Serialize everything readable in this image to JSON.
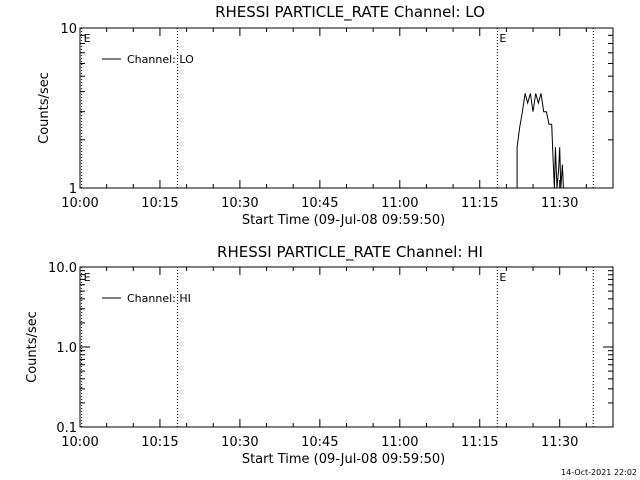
{
  "footer": {
    "timestamp": "14-Oct-2021 22:02"
  },
  "chart_data": [
    {
      "type": "line",
      "title": "RHESSI PARTICLE_RATE Channel: LO",
      "xlabel": "Start Time (09-Jul-08 09:59:50)",
      "ylabel": "Counts/sec",
      "y_scale": "log",
      "xlim_minutes": [
        0,
        100
      ],
      "ylim": [
        1,
        10
      ],
      "x_ticks": [
        {
          "minutes": 0,
          "label": "10:00"
        },
        {
          "minutes": 15,
          "label": "10:15"
        },
        {
          "minutes": 30,
          "label": "10:30"
        },
        {
          "minutes": 45,
          "label": "10:45"
        },
        {
          "minutes": 60,
          "label": "11:00"
        },
        {
          "minutes": 75,
          "label": "11:15"
        },
        {
          "minutes": 90,
          "label": "11:30"
        }
      ],
      "y_ticks": [
        {
          "value": 1,
          "label": "1"
        },
        {
          "value": 10,
          "label": "10"
        }
      ],
      "legend": {
        "entry": "Channel: LO",
        "position": "top-left"
      },
      "event_lines": [
        {
          "minutes": 0.3,
          "label": "E"
        },
        {
          "minutes": 18.3,
          "label": ""
        },
        {
          "minutes": 78.3,
          "label": "E"
        },
        {
          "minutes": 96.3,
          "label": ""
        }
      ],
      "series": [
        {
          "x_minutes": [
            82.0,
            82.0,
            82.5,
            83.0,
            83.5,
            84.0,
            84.5,
            85.0,
            85.5,
            86.0,
            86.5,
            87.0,
            87.5,
            88.0,
            88.5,
            88.8,
            89.0,
            89.2,
            89.5,
            89.8,
            90.0,
            90.2,
            90.5,
            90.7,
            91.0
          ],
          "y": [
            1.0,
            1.8,
            2.4,
            3.0,
            3.9,
            3.4,
            3.9,
            3.0,
            3.9,
            3.4,
            3.9,
            3.0,
            3.0,
            2.5,
            2.5,
            1.4,
            1.0,
            1.8,
            1.0,
            1.3,
            1.8,
            1.0,
            1.4,
            1.0,
            1.0
          ]
        }
      ]
    },
    {
      "type": "line",
      "title": "RHESSI PARTICLE_RATE Channel: HI",
      "xlabel": "Start Time (09-Jul-08 09:59:50)",
      "ylabel": "Counts/sec",
      "y_scale": "log",
      "xlim_minutes": [
        0,
        100
      ],
      "ylim": [
        0.1,
        10
      ],
      "x_ticks": [
        {
          "minutes": 0,
          "label": "10:00"
        },
        {
          "minutes": 15,
          "label": "10:15"
        },
        {
          "minutes": 30,
          "label": "10:30"
        },
        {
          "minutes": 45,
          "label": "10:45"
        },
        {
          "minutes": 60,
          "label": "11:00"
        },
        {
          "minutes": 75,
          "label": "11:15"
        },
        {
          "minutes": 90,
          "label": "11:30"
        }
      ],
      "y_ticks": [
        {
          "value": 0.1,
          "label": "0.1"
        },
        {
          "value": 1,
          "label": "1.0"
        },
        {
          "value": 10,
          "label": "10.0"
        }
      ],
      "legend": {
        "entry": "Channel: HI",
        "position": "top-left"
      },
      "event_lines": [
        {
          "minutes": 0.3,
          "label": "E"
        },
        {
          "minutes": 18.3,
          "label": ""
        },
        {
          "minutes": 78.3,
          "label": "E"
        },
        {
          "minutes": 96.3,
          "label": ""
        }
      ],
      "series": [
        {
          "x_minutes": [],
          "y": []
        }
      ]
    }
  ]
}
